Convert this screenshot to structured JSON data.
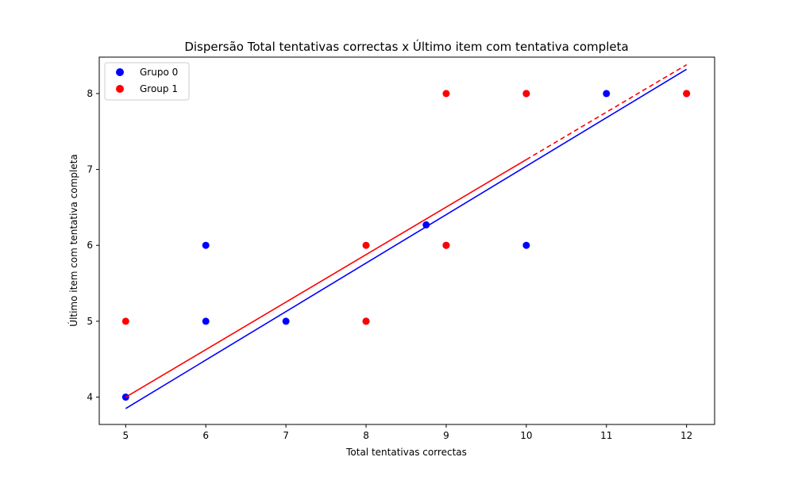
{
  "chart_data": {
    "type": "scatter",
    "title": "Dispersão Total tentativas correctas x Último item com tentativa completa",
    "xlabel": "Total tentativas correctas",
    "ylabel": "Último item com tentativa completa",
    "xlim": [
      4.67,
      12.35
    ],
    "ylim": [
      3.64,
      8.48
    ],
    "xticks": [
      "5",
      "6",
      "7",
      "8",
      "9",
      "10",
      "11",
      "12"
    ],
    "yticks": [
      "4",
      "5",
      "6",
      "7",
      "8"
    ],
    "grid": false,
    "legend_position": "top-left",
    "series": [
      {
        "name": "Grupo 0",
        "color": "#0000ff",
        "points": [
          [
            5,
            4
          ],
          [
            6,
            6
          ],
          [
            6,
            5
          ],
          [
            7,
            5
          ],
          [
            8,
            5
          ],
          [
            8.75,
            6.27
          ],
          [
            9,
            6
          ],
          [
            10,
            8
          ],
          [
            10,
            6
          ],
          [
            11,
            8
          ],
          [
            12,
            8
          ]
        ],
        "fit": {
          "x": [
            5,
            12
          ],
          "y": [
            3.85,
            8.32
          ],
          "style": "solid"
        }
      },
      {
        "name": "Group 1",
        "color": "#ff0000",
        "points": [
          [
            5,
            5
          ],
          [
            8,
            6
          ],
          [
            8,
            5
          ],
          [
            9,
            8
          ],
          [
            9,
            6
          ],
          [
            10,
            8
          ],
          [
            12,
            8
          ]
        ],
        "fit": {
          "x": [
            5,
            10
          ],
          "y": [
            4.0,
            7.13
          ],
          "style": "solid"
        },
        "fit_extension": {
          "x": [
            10,
            12
          ],
          "y": [
            7.13,
            8.38
          ],
          "style": "dashed"
        }
      }
    ]
  }
}
